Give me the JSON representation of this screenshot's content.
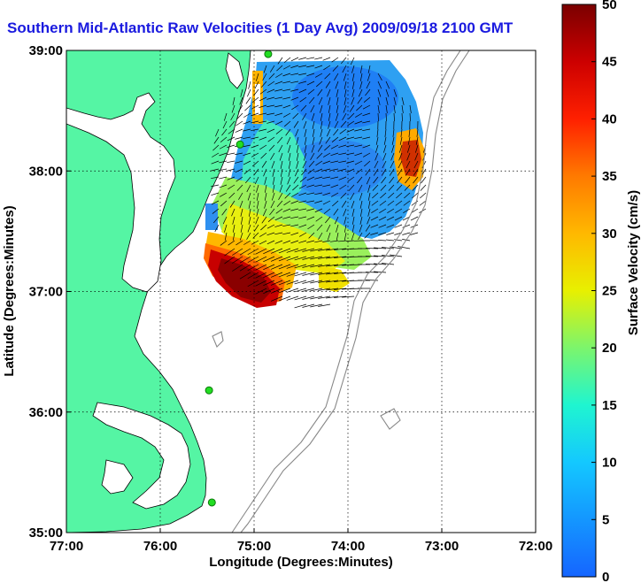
{
  "title": "Southern Mid-Atlantic Raw Velocities (1 Day Avg) 2009/09/18 2100 GMT",
  "axes": {
    "xlabel": "Longitude (Degrees:Minutes)",
    "ylabel": "Latitude (Degrees:Minutes)",
    "x_ticks": [
      "77:00",
      "76:00",
      "75:00",
      "74:00",
      "73:00",
      "72:00"
    ],
    "y_ticks": [
      "39:00",
      "38:00",
      "37:00",
      "36:00",
      "35:00"
    ],
    "xlim": [
      -77,
      -72
    ],
    "ylim": [
      35,
      39
    ]
  },
  "colorbar": {
    "label": "Surface Velocity (cm/s)",
    "ticks": [
      "0",
      "5",
      "10",
      "15",
      "20",
      "25",
      "30",
      "35",
      "40",
      "45",
      "50"
    ],
    "range": [
      0,
      50
    ]
  },
  "colors": {
    "land": "#55f5a4",
    "title": "#1a1adf",
    "station": "#22dd22"
  },
  "chart_data": {
    "type": "heatmap",
    "title": "Southern Mid-Atlantic Raw Velocities (1 Day Avg) 2009/09/18 2100 GMT",
    "xlabel": "Longitude (Degrees:Minutes)",
    "ylabel": "Latitude (Degrees:Minutes)",
    "xlim": [
      -77,
      -72
    ],
    "ylim": [
      35,
      39
    ],
    "colorbar_label": "Surface Velocity (cm/s)",
    "colorbar_range": [
      0,
      50
    ],
    "grid": true,
    "stations": [
      {
        "lon": -74.85,
        "lat": 38.97
      },
      {
        "lon": -75.15,
        "lat": 38.22
      },
      {
        "lon": -75.48,
        "lat": 36.18
      },
      {
        "lon": -75.45,
        "lat": 35.25
      }
    ],
    "velocity_regions": [
      {
        "lon": -74.1,
        "lat": 38.7,
        "speed": 7
      },
      {
        "lon": -73.8,
        "lat": 38.2,
        "speed": 8
      },
      {
        "lon": -73.3,
        "lat": 38.0,
        "speed": 37
      },
      {
        "lon": -74.9,
        "lat": 37.8,
        "speed": 22
      },
      {
        "lon": -74.3,
        "lat": 37.4,
        "speed": 28
      },
      {
        "lon": -75.0,
        "lat": 37.1,
        "speed": 45
      },
      {
        "lon": -73.9,
        "lat": 37.05,
        "speed": 30
      }
    ]
  }
}
